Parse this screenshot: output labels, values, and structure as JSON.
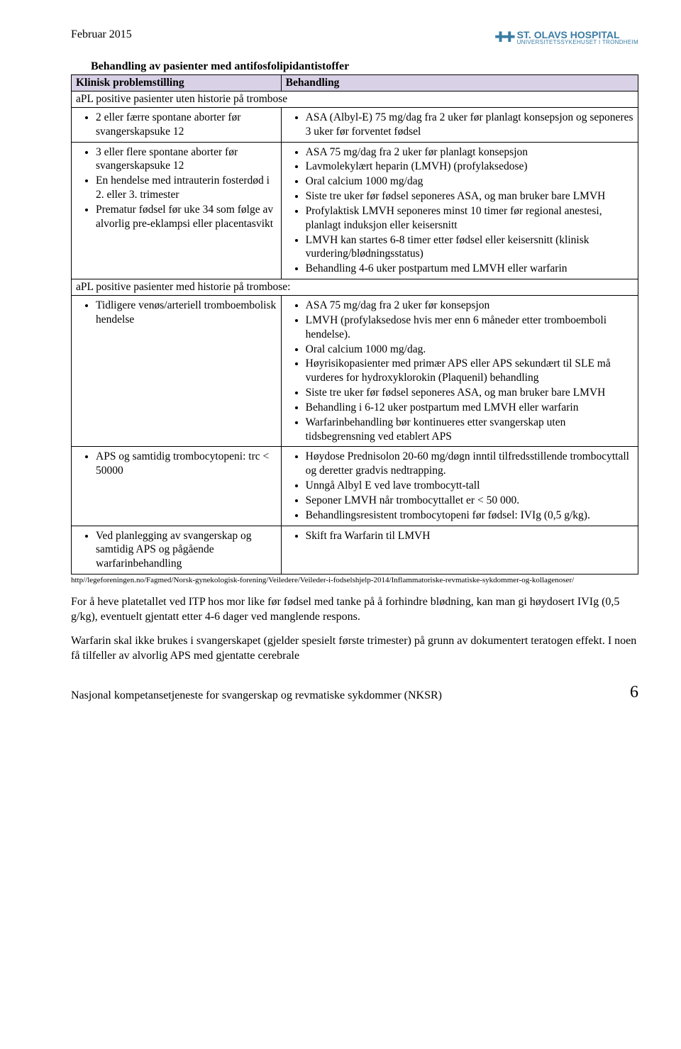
{
  "header": {
    "date": "Februar 2015",
    "logo_main": "ST. OLAVS HOSPITAL",
    "logo_sub": "UNIVERSITETSSYKEHUSET I TRONDHEIM"
  },
  "title": "Behandling av pasienter med antifosfolipidantistoffer",
  "table": {
    "col1_header": "Klinisk problemstilling",
    "col2_header": "Behandling",
    "section1_title": "aPL positive pasienter uten historie på trombose",
    "r1_left": [
      "2 eller færre spontane aborter før svangerskapsuke 12"
    ],
    "r1_right": [
      "ASA (Albyl-E) 75 mg/dag fra 2 uker før planlagt konsepsjon og seponeres 3 uker før forventet fødsel"
    ],
    "r2_left": [
      "3 eller flere spontane aborter før svangerskapsuke 12",
      "En hendelse med intrauterin fosterdød i 2. eller 3. trimester",
      "Prematur fødsel før uke 34 som følge av alvorlig pre-eklampsi eller placentasvikt"
    ],
    "r2_right": [
      "ASA 75 mg/dag fra 2 uker før planlagt konsepsjon",
      "Lavmolekylært heparin (LMVH) (profylaksedose)",
      "Oral calcium 1000 mg/dag",
      "Siste tre uker før fødsel seponeres ASA, og man bruker bare LMVH",
      "Profylaktisk LMVH seponeres minst 10 timer før regional anestesi, planlagt induksjon eller keisersnitt",
      "LMVH kan startes 6-8 timer etter fødsel eller keisersnitt (klinisk vurdering/blødningsstatus)",
      "Behandling 4-6 uker postpartum med LMVH eller warfarin"
    ],
    "section2_title": "aPL positive pasienter med historie på trombose:",
    "r3_left": [
      "Tidligere venøs/arteriell tromboembolisk hendelse"
    ],
    "r3_right": [
      "ASA 75 mg/dag fra 2 uker før konsepsjon",
      "LMVH (profylaksedose hvis mer enn 6 måneder etter tromboemboli hendelse).",
      "Oral calcium 1000 mg/dag.",
      "Høyrisikopasienter med primær APS eller APS sekundært til SLE må vurderes for hydroxyklorokin (Plaquenil) behandling",
      "Siste tre uker før fødsel seponeres ASA, og man bruker bare LMVH",
      "Behandling i 6-12 uker postpartum med LMVH eller warfarin",
      "Warfarinbehandling bør kontinueres etter svangerskap uten tidsbegrensning ved etablert APS"
    ],
    "r4_left": [
      "APS og samtidig trombocytopeni: trc < 50000"
    ],
    "r4_right": [
      "Høydose Prednisolon 20-60 mg/døgn inntil tilfredsstillende trombocyttall og deretter gradvis nedtrapping.",
      "Unngå Albyl E ved lave trombocytt-tall",
      "Seponer LMVH når trombocyttallet er < 50 000.",
      "Behandlingsresistent trombocytopeni før fødsel: IVIg (0,5 g/kg)."
    ],
    "r5_left": [
      "Ved planlegging av svangerskap og samtidig APS og pågående warfarinbehandling"
    ],
    "r5_right": [
      "Skift fra Warfarin til LMVH"
    ]
  },
  "reference": "http//legeforeningen.no/Fagmed/Norsk-gynekologisk-forening/Veiledere/Veileder-i-fodselshjelp-2014/Inflammatoriske-revmatiske-sykdommer-og-kollagenoser/",
  "para1": "For å heve platetallet ved ITP hos mor like før fødsel med tanke på å forhindre blødning, kan man gi høydosert IVIg (0,5 g/kg), eventuelt gjentatt etter 4-6 dager ved manglende respons.",
  "para2": "Warfarin skal ikke brukes i svangerskapet (gjelder spesielt første trimester) på grunn av dokumentert teratogen effekt. I noen få tilfeller av alvorlig APS med gjentatte cerebrale",
  "footer": {
    "text": "Nasjonal kompetansetjeneste for svangerskap og revmatiske sykdommer (NKSR)",
    "page": "6"
  }
}
